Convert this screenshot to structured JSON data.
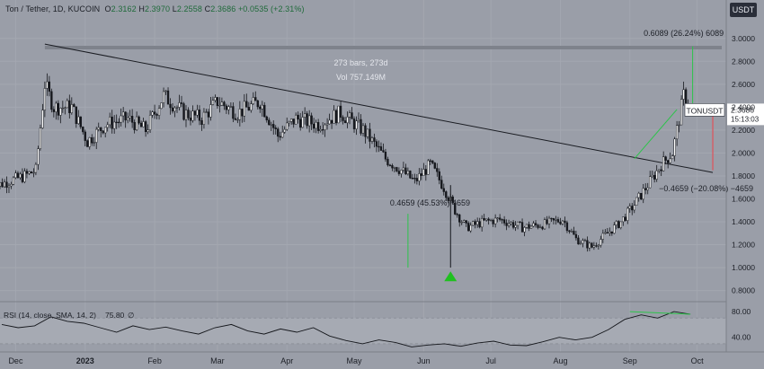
{
  "header": {
    "title": "Ton / Tether, 1D, KUCOIN",
    "o_label": "O",
    "o": "2.3162",
    "h_label": "H",
    "h": "2.3970",
    "l_label": "L",
    "l": "2.2558",
    "c_label": "C",
    "c": "2.3686",
    "change": "+0.0535 (+2.31%)"
  },
  "currency_button": "USDT",
  "chart_data": {
    "type": "candlestick",
    "symbol": "TONUSDT",
    "x_labels": [
      "Dec",
      "2023",
      "Feb",
      "Mar",
      "Apr",
      "May",
      "Jun",
      "Jul",
      "Aug",
      "Sep",
      "Oct"
    ],
    "y_ticks": [
      "3.0000",
      "2.8000",
      "2.6000",
      "2.4000",
      "2.2000",
      "2.0000",
      "1.8000",
      "1.6000",
      "1.4000",
      "1.2000",
      "1.0000",
      "0.8000"
    ],
    "ylim": [
      0.75,
      3.1
    ],
    "close_series": [
      [
        "2022-11-20",
        1.7
      ],
      [
        "2022-12-05",
        1.8
      ],
      [
        "2022-12-10",
        1.85
      ],
      [
        "2022-12-14",
        2.6
      ],
      [
        "2022-12-18",
        2.4
      ],
      [
        "2022-12-26",
        2.4
      ],
      [
        "2023-01-02",
        2.1
      ],
      [
        "2023-01-10",
        2.25
      ],
      [
        "2023-01-20",
        2.3
      ],
      [
        "2023-01-28",
        2.2
      ],
      [
        "2023-02-05",
        2.5
      ],
      [
        "2023-02-14",
        2.35
      ],
      [
        "2023-02-22",
        2.3
      ],
      [
        "2023-03-01",
        2.45
      ],
      [
        "2023-03-10",
        2.35
      ],
      [
        "2023-03-20",
        2.45
      ],
      [
        "2023-03-28",
        2.15
      ],
      [
        "2023-04-05",
        2.3
      ],
      [
        "2023-04-15",
        2.25
      ],
      [
        "2023-04-25",
        2.35
      ],
      [
        "2023-05-05",
        2.2
      ],
      [
        "2023-05-15",
        1.95
      ],
      [
        "2023-05-22",
        1.85
      ],
      [
        "2023-05-28",
        1.75
      ],
      [
        "2023-06-04",
        1.9
      ],
      [
        "2023-06-10",
        1.7
      ],
      [
        "2023-06-15",
        1.5
      ],
      [
        "2023-06-20",
        1.35
      ],
      [
        "2023-06-28",
        1.4
      ],
      [
        "2023-07-05",
        1.42
      ],
      [
        "2023-07-15",
        1.35
      ],
      [
        "2023-07-25",
        1.38
      ],
      [
        "2023-08-02",
        1.42
      ],
      [
        "2023-08-08",
        1.25
      ],
      [
        "2023-08-15",
        1.18
      ],
      [
        "2023-08-22",
        1.3
      ],
      [
        "2023-08-28",
        1.4
      ],
      [
        "2023-09-03",
        1.55
      ],
      [
        "2023-09-10",
        1.75
      ],
      [
        "2023-09-15",
        1.9
      ],
      [
        "2023-09-20",
        2.0
      ],
      [
        "2023-09-25",
        2.5
      ],
      [
        "2023-09-28",
        2.37
      ]
    ],
    "last_price": "2.3686",
    "countdown": "15:13:03",
    "resistance": {
      "value": 2.92,
      "from": "2022-12-14",
      "to": "2023-10-12"
    },
    "trendline": {
      "from": [
        "2022-12-14",
        2.95
      ],
      "to": [
        "2023-10-08",
        1.83
      ]
    },
    "measure_top": {
      "label": "0.6089 (26.24%) 6089",
      "from": 2.32,
      "to": 2.93
    },
    "measure_left": {
      "label": "0.4659 (45.53%) 4659",
      "from": 1.0,
      "to": 1.47
    },
    "measure_right": {
      "label": "−0.4659 (−20.08%) −4659",
      "from": 2.32,
      "to": 1.85
    },
    "bar_range_label": "273 bars, 273d",
    "volume_label": "Vol 757.149M",
    "bottom_marker": {
      "date": "2023-06-13",
      "value": 0.92,
      "color": "#20c020"
    },
    "rsi": {
      "label": "RSI (14, close, SMA, 14, 2)",
      "value": "75.80",
      "extra": "∅",
      "ticks": [
        "80.00",
        "40.00"
      ],
      "ylim": [
        20,
        90
      ],
      "values": [
        60,
        55,
        58,
        72,
        65,
        62,
        55,
        48,
        58,
        52,
        56,
        50,
        45,
        55,
        60,
        50,
        45,
        53,
        48,
        55,
        42,
        35,
        30,
        36,
        32,
        25,
        28,
        30,
        26,
        31,
        34,
        28,
        27,
        33,
        40,
        36,
        40,
        52,
        68,
        75,
        70,
        80,
        76
      ]
    }
  },
  "colors": {
    "background": "#9a9ea8",
    "candle": "#15171c",
    "green": "#2cc44a",
    "red": "#e0525a"
  }
}
